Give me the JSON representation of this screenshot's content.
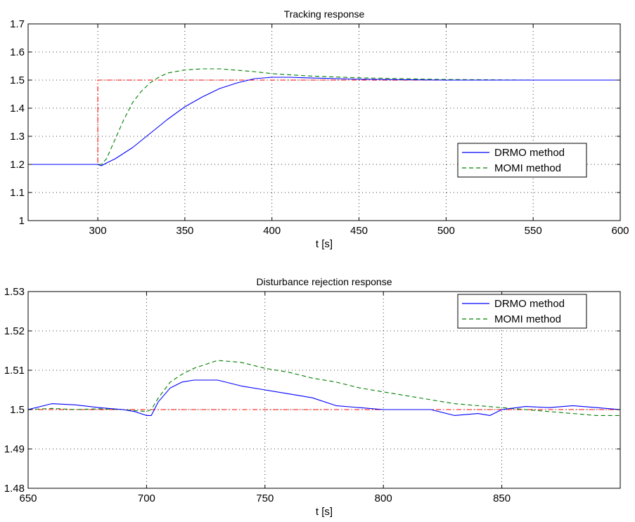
{
  "chart_data": [
    {
      "type": "line",
      "title": "Tracking response",
      "xlabel": "t [s]",
      "ylabel": "",
      "xlim": [
        260,
        600
      ],
      "ylim": [
        1,
        1.7
      ],
      "xticks": [
        300,
        350,
        400,
        450,
        500,
        550,
        600
      ],
      "yticks": [
        1,
        1.1,
        1.2,
        1.3,
        1.4,
        1.5,
        1.6,
        1.7
      ],
      "grid": true,
      "legend_position": "lower-right",
      "series": [
        {
          "name": "DRMO method",
          "color": "#0000ff",
          "style": "solid",
          "x": [
            260,
            300,
            302,
            305,
            310,
            320,
            330,
            340,
            350,
            360,
            370,
            380,
            390,
            400,
            410,
            420,
            450,
            500,
            550,
            600
          ],
          "y": [
            1.2,
            1.2,
            1.195,
            1.205,
            1.22,
            1.26,
            1.31,
            1.36,
            1.405,
            1.44,
            1.47,
            1.49,
            1.505,
            1.51,
            1.51,
            1.508,
            1.503,
            1.5,
            1.5,
            1.5
          ]
        },
        {
          "name": "MOMI method",
          "color": "#008000",
          "style": "dashed",
          "x": [
            260,
            300,
            302,
            305,
            310,
            315,
            320,
            325,
            330,
            335,
            340,
            350,
            360,
            370,
            380,
            390,
            400,
            420,
            450,
            500,
            550,
            600
          ],
          "y": [
            1.2,
            1.2,
            1.2,
            1.22,
            1.29,
            1.36,
            1.42,
            1.46,
            1.49,
            1.51,
            1.525,
            1.536,
            1.54,
            1.54,
            1.535,
            1.53,
            1.523,
            1.515,
            1.508,
            1.502,
            1.5,
            1.5
          ]
        },
        {
          "name": "",
          "color": "#ff0000",
          "style": "dashdot",
          "x": [
            260,
            300,
            300,
            600
          ],
          "y": [
            1.2,
            1.2,
            1.5,
            1.5
          ]
        }
      ]
    },
    {
      "type": "line",
      "title": "Disturbance rejection response",
      "xlabel": "t [s]",
      "ylabel": "",
      "xlim": [
        650,
        900
      ],
      "ylim": [
        1.48,
        1.53
      ],
      "xticks": [
        650,
        700,
        750,
        800,
        850
      ],
      "yticks": [
        1.48,
        1.49,
        1.5,
        1.51,
        1.52,
        1.53
      ],
      "grid": true,
      "legend_position": "top-right",
      "series": [
        {
          "name": "DRMO method",
          "color": "#0000ff",
          "style": "solid",
          "x": [
            650,
            660,
            670,
            680,
            690,
            695,
            700,
            702,
            705,
            710,
            715,
            720,
            730,
            740,
            750,
            760,
            770,
            780,
            790,
            800,
            810,
            820,
            830,
            840,
            845,
            850,
            860,
            870,
            880,
            890,
            900
          ],
          "y": [
            1.5,
            1.5015,
            1.5012,
            1.5005,
            1.5,
            1.4995,
            1.4985,
            1.4985,
            1.502,
            1.5055,
            1.507,
            1.5075,
            1.5075,
            1.506,
            1.505,
            1.504,
            1.503,
            1.501,
            1.5005,
            1.5,
            1.5,
            1.5,
            1.4985,
            1.499,
            1.4985,
            1.5,
            1.5008,
            1.5005,
            1.501,
            1.5005,
            1.5
          ]
        },
        {
          "name": "MOMI method",
          "color": "#008000",
          "style": "dashed",
          "x": [
            650,
            660,
            670,
            680,
            690,
            700,
            702,
            705,
            710,
            715,
            720,
            730,
            740,
            750,
            760,
            770,
            780,
            790,
            800,
            810,
            820,
            830,
            840,
            850,
            860,
            870,
            880,
            890,
            900
          ],
          "y": [
            1.5,
            1.5003,
            1.5,
            1.5002,
            1.5,
            1.4995,
            1.5,
            1.503,
            1.507,
            1.509,
            1.5105,
            1.5125,
            1.512,
            1.5105,
            1.5095,
            1.508,
            1.507,
            1.5055,
            1.5045,
            1.5035,
            1.5025,
            1.5015,
            1.501,
            1.5005,
            1.5,
            1.4995,
            1.499,
            1.4985,
            1.4985
          ]
        },
        {
          "name": "",
          "color": "#ff0000",
          "style": "dashdot",
          "x": [
            650,
            900
          ],
          "y": [
            1.5,
            1.5
          ]
        }
      ]
    }
  ]
}
